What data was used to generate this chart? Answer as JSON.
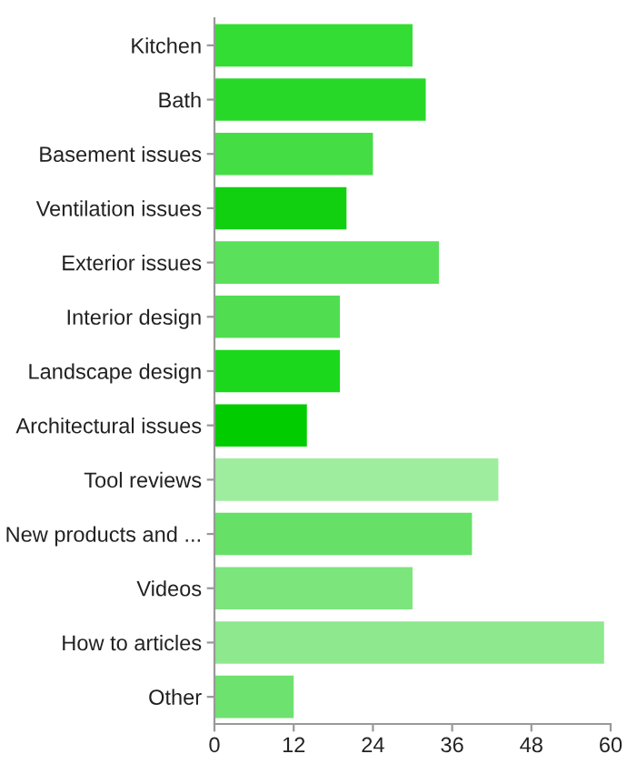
{
  "chart_data": {
    "type": "bar",
    "orientation": "horizontal",
    "categories": [
      "Kitchen",
      "Bath",
      "Basement issues",
      "Ventilation issues",
      "Exterior issues",
      "Interior design",
      "Landscape design",
      "Architectural issues",
      "Tool reviews",
      "New products and ...",
      "Videos",
      "How to articles",
      "Other"
    ],
    "values": [
      30,
      32,
      24,
      20,
      34,
      19,
      19,
      14,
      43,
      39,
      30,
      59,
      12
    ],
    "colors": [
      "#33dd33",
      "#28d828",
      "#44dd44",
      "#10d010",
      "#5ae05a",
      "#50dd50",
      "#1cd81c",
      "#00cc00",
      "#9eed9e",
      "#66e066",
      "#7ce57c",
      "#8ee88e",
      "#6ee26e"
    ],
    "xlim": [
      0,
      60
    ],
    "xticks": [
      0,
      12,
      24,
      36,
      48,
      60
    ],
    "grid": false,
    "legend": false
  }
}
